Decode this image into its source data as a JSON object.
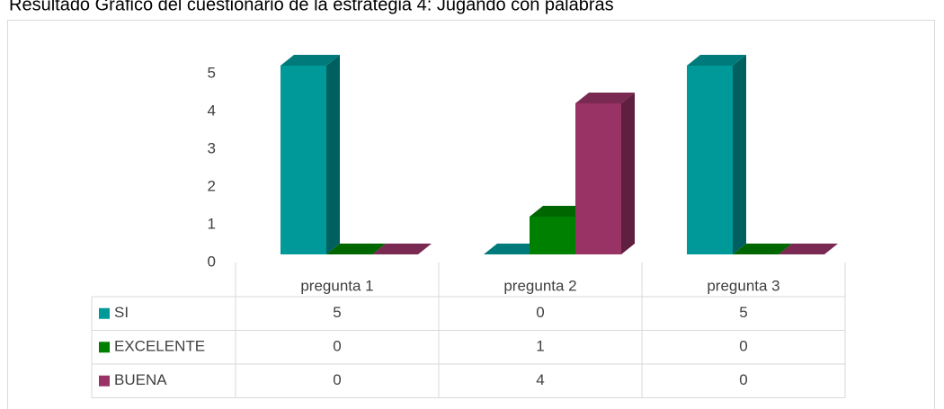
{
  "chart_data": {
    "type": "bar3d",
    "title": "Resultado Gráfico del cuestionario de la estrategia 4: Jugando con palabras",
    "categories": [
      "pregunta 1",
      "pregunta 2",
      "pregunta 3"
    ],
    "series": [
      {
        "name": "SI",
        "color": "#009999",
        "values": [
          5,
          0,
          5
        ]
      },
      {
        "name": "EXCELENTE",
        "color": "#008000",
        "values": [
          0,
          1,
          0
        ]
      },
      {
        "name": "BUENA",
        "color": "#993366",
        "values": [
          0,
          4,
          0
        ]
      }
    ],
    "ylim": [
      0,
      5
    ],
    "yticks": [
      0,
      1,
      2,
      3,
      4,
      5
    ],
    "data_table": true
  }
}
